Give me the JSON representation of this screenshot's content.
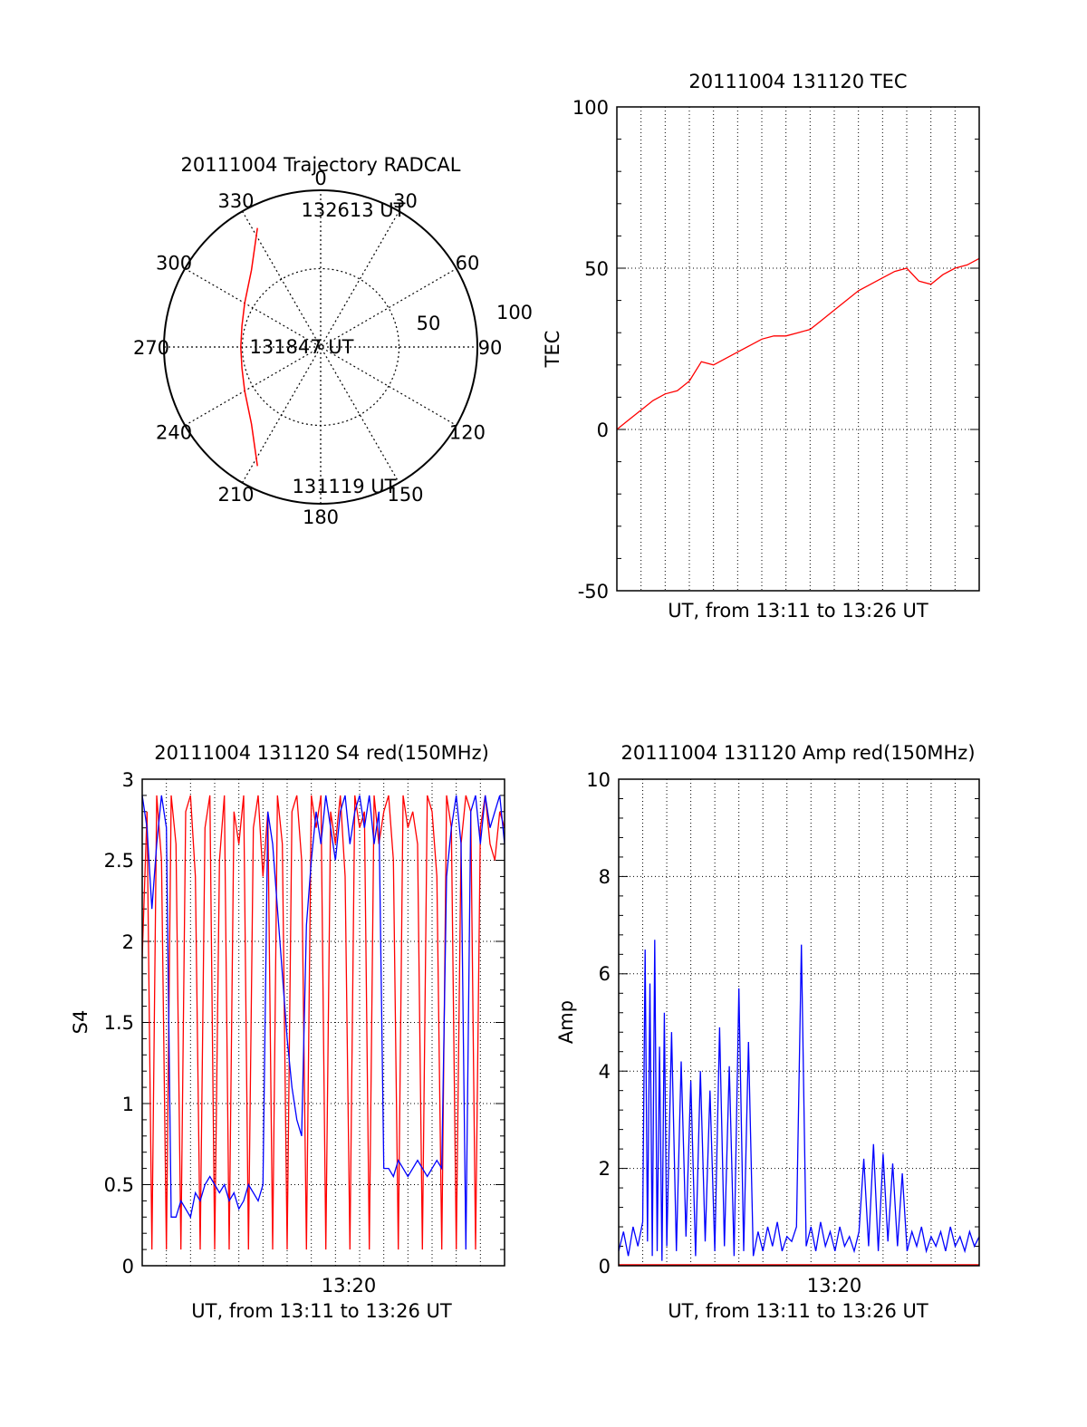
{
  "colors": {
    "trace_red": "#ff0000",
    "trace_blue": "#0000ff",
    "axis": "#000000",
    "grid": "#000000"
  },
  "chart_data": [
    {
      "id": "polar",
      "type": "scatter",
      "title": "20111004 Trajectory RADCAL",
      "coordinate_system": "polar",
      "azimuth_ticks": [
        "0",
        "30",
        "60",
        "90",
        "120",
        "150",
        "180",
        "210",
        "240",
        "270",
        "300",
        "330"
      ],
      "radial_ticks": [
        "50",
        "100"
      ],
      "radial_range": [
        0,
        100
      ],
      "grid": true,
      "annotations": [
        "132613 UT",
        "131847 UT",
        "131119 UT"
      ],
      "series": [
        {
          "color": "#ff0000",
          "points_azimuth_zenith": [
            [
              332,
              86
            ],
            [
              318,
              66
            ],
            [
              300,
              56
            ],
            [
              285,
              52
            ],
            [
              270,
              51
            ],
            [
              255,
              52
            ],
            [
              240,
              56
            ],
            [
              222,
              66
            ],
            [
              208,
              86
            ]
          ]
        }
      ]
    },
    {
      "id": "tec",
      "type": "line",
      "title": "20111004 131120 TEC",
      "xlabel": "UT, from 13:11 to 13:26 UT",
      "ylabel": "TEC",
      "xlim": [
        0,
        15
      ],
      "ylim": [
        -50,
        100
      ],
      "yticks": [
        "100",
        "50",
        "0",
        "-50"
      ],
      "grid": true,
      "series": [
        {
          "color": "#ff0000",
          "x": [
            0,
            0.5,
            1,
            1.5,
            2,
            2.5,
            3,
            3.5,
            4,
            4.5,
            5,
            5.5,
            6,
            6.5,
            7,
            7.5,
            8,
            8.5,
            9,
            9.5,
            10,
            10.5,
            11,
            11.5,
            12,
            12.5,
            13,
            13.5,
            14,
            14.5,
            15
          ],
          "y": [
            0,
            3,
            6,
            9,
            11,
            12,
            15,
            21,
            20,
            22,
            24,
            26,
            28,
            29,
            29,
            30,
            31,
            34,
            37,
            40,
            43,
            45,
            47,
            49,
            50,
            46,
            45,
            48,
            50,
            51,
            53
          ]
        }
      ]
    },
    {
      "id": "s4",
      "type": "line",
      "title": "20111004 131120 S4 red(150MHz)",
      "xlabel": "UT, from 13:11 to 13:26 UT",
      "ylabel": "S4",
      "xlim": [
        0,
        15
      ],
      "ylim": [
        0,
        3
      ],
      "yticks": [
        "3",
        "2.5",
        "2",
        "1.5",
        "1",
        "0.5",
        "0"
      ],
      "xticks": [
        "13:20"
      ],
      "grid": true,
      "series": [
        {
          "color": "#ff0000",
          "x": [
            0,
            0.2,
            0.4,
            0.6,
            0.8,
            1,
            1.2,
            1.4,
            1.6,
            1.8,
            2,
            2.2,
            2.4,
            2.6,
            2.8,
            3,
            3.2,
            3.4,
            3.6,
            3.8,
            4,
            4.2,
            4.4,
            4.6,
            4.8,
            5,
            5.2,
            5.4,
            5.6,
            5.8,
            6,
            6.2,
            6.4,
            6.6,
            6.8,
            7,
            7.2,
            7.4,
            7.6,
            7.8,
            8,
            8.2,
            8.4,
            8.6,
            8.8,
            9,
            9.2,
            9.4,
            9.6,
            9.8,
            10,
            10.2,
            10.4,
            10.6,
            10.8,
            11,
            11.2,
            11.4,
            11.6,
            11.8,
            12,
            12.2,
            12.4,
            12.6,
            12.8,
            13,
            13.2,
            13.4,
            13.6,
            13.8,
            14,
            14.2,
            14.4,
            14.6,
            14.8,
            15
          ],
          "y": [
            1.9,
            2.8,
            0.1,
            2.9,
            2.5,
            0.1,
            2.9,
            2.6,
            0.1,
            2.8,
            2.9,
            2.4,
            0.1,
            2.7,
            2.9,
            0.1,
            2.5,
            2.9,
            0.1,
            2.8,
            2.6,
            2.9,
            0.1,
            2.7,
            2.9,
            2.4,
            2.8,
            0.1,
            2.9,
            2.6,
            0.1,
            2.8,
            2.9,
            2.5,
            0.1,
            2.9,
            2.7,
            2.9,
            0.1,
            2.8,
            2.6,
            2.9,
            2.4,
            0.1,
            2.9,
            2.7,
            2.8,
            0.1,
            2.9,
            2.6,
            2.8,
            2.9,
            2.5,
            0.1,
            2.9,
            2.7,
            2.8,
            2.6,
            0.1,
            2.9,
            2.8,
            2.4,
            0.1,
            2.9,
            2.7,
            0.1,
            2.6,
            2.9,
            2.8,
            0.1,
            2.7,
            2.9,
            2.6,
            2.5,
            2.8,
            2.7
          ]
        },
        {
          "color": "#0000ff",
          "x": [
            0,
            0.2,
            0.4,
            0.6,
            0.8,
            1,
            1.2,
            1.4,
            1.6,
            1.8,
            2,
            2.2,
            2.4,
            2.6,
            2.8,
            3,
            3.2,
            3.4,
            3.6,
            3.8,
            4,
            4.2,
            4.4,
            4.6,
            4.8,
            5,
            5.2,
            5.4,
            5.6,
            5.8,
            6,
            6.2,
            6.4,
            6.6,
            6.8,
            7,
            7.2,
            7.4,
            7.6,
            7.8,
            8,
            8.2,
            8.4,
            8.6,
            8.8,
            9,
            9.2,
            9.4,
            9.6,
            9.8,
            10,
            10.2,
            10.4,
            10.6,
            10.8,
            11,
            11.2,
            11.4,
            11.6,
            11.8,
            12,
            12.2,
            12.4,
            12.6,
            12.8,
            13,
            13.2,
            13.4,
            13.6,
            13.8,
            14,
            14.2,
            14.4,
            14.6,
            14.8,
            15
          ],
          "y": [
            2.9,
            2.7,
            2.2,
            2.6,
            2.9,
            2.7,
            0.3,
            0.3,
            0.4,
            0.35,
            0.3,
            0.45,
            0.4,
            0.5,
            0.55,
            0.5,
            0.45,
            0.5,
            0.4,
            0.45,
            0.35,
            0.4,
            0.5,
            0.45,
            0.4,
            0.5,
            2.8,
            2.6,
            2.2,
            1.8,
            1.4,
            1.1,
            0.9,
            0.8,
            2.1,
            2.5,
            2.8,
            2.6,
            2.9,
            2.7,
            2.5,
            2.8,
            2.9,
            2.6,
            2.8,
            2.9,
            2.7,
            2.9,
            2.6,
            2.8,
            0.6,
            0.6,
            0.55,
            0.65,
            0.6,
            0.55,
            0.6,
            0.65,
            0.6,
            0.55,
            0.6,
            0.65,
            0.6,
            2.4,
            2.7,
            2.9,
            2.6,
            0.1,
            2.8,
            2.9,
            2.6,
            2.9,
            2.7,
            2.8,
            2.9,
            2.6
          ]
        }
      ]
    },
    {
      "id": "amp",
      "type": "line",
      "title": "20111004 131120 Amp red(150MHz)",
      "xlabel": "UT, from 13:11 to 13:26 UT",
      "ylabel": "Amp",
      "xlim": [
        0,
        15
      ],
      "ylim": [
        0,
        10
      ],
      "yticks": [
        "10",
        "8",
        "6",
        "4",
        "2",
        "0"
      ],
      "xticks": [
        "13:20"
      ],
      "grid": true,
      "series": [
        {
          "color": "#0000ff",
          "x": [
            0,
            0.2,
            0.4,
            0.6,
            0.8,
            1,
            1.1,
            1.2,
            1.3,
            1.4,
            1.5,
            1.6,
            1.7,
            1.8,
            1.9,
            2,
            2.2,
            2.4,
            2.6,
            2.8,
            3,
            3.2,
            3.4,
            3.6,
            3.8,
            4,
            4.2,
            4.4,
            4.6,
            4.8,
            5,
            5.2,
            5.4,
            5.6,
            5.8,
            6,
            6.2,
            6.4,
            6.6,
            6.8,
            7,
            7.2,
            7.4,
            7.6,
            7.8,
            8,
            8.2,
            8.4,
            8.6,
            8.8,
            9,
            9.2,
            9.4,
            9.6,
            9.8,
            10,
            10.2,
            10.4,
            10.6,
            10.8,
            11,
            11.2,
            11.4,
            11.6,
            11.8,
            12,
            12.2,
            12.4,
            12.6,
            12.8,
            13,
            13.2,
            13.4,
            13.6,
            13.8,
            14,
            14.2,
            14.4,
            14.6,
            14.8,
            15
          ],
          "y": [
            0.3,
            0.7,
            0.2,
            0.8,
            0.4,
            0.9,
            6.5,
            0.5,
            5.8,
            0.2,
            6.7,
            0.3,
            4.5,
            0.1,
            5.2,
            0.4,
            4.8,
            0.3,
            4.2,
            0.6,
            3.8,
            0.2,
            4.0,
            0.5,
            3.6,
            0.3,
            4.9,
            0.4,
            4.1,
            0.2,
            5.7,
            0.3,
            4.6,
            0.2,
            0.7,
            0.3,
            0.8,
            0.4,
            0.9,
            0.3,
            0.6,
            0.5,
            0.8,
            6.6,
            0.4,
            0.8,
            0.3,
            0.9,
            0.4,
            0.7,
            0.3,
            0.8,
            0.4,
            0.6,
            0.3,
            0.7,
            2.2,
            0.4,
            2.5,
            0.3,
            2.3,
            0.5,
            2.1,
            0.4,
            1.9,
            0.3,
            0.7,
            0.4,
            0.8,
            0.3,
            0.6,
            0.4,
            0.7,
            0.3,
            0.8,
            0.4,
            0.6,
            0.3,
            0.7,
            0.4,
            0.6
          ]
        },
        {
          "color": "#ff0000",
          "x": [
            0,
            15
          ],
          "y": [
            0.02,
            0.02
          ]
        }
      ]
    }
  ]
}
